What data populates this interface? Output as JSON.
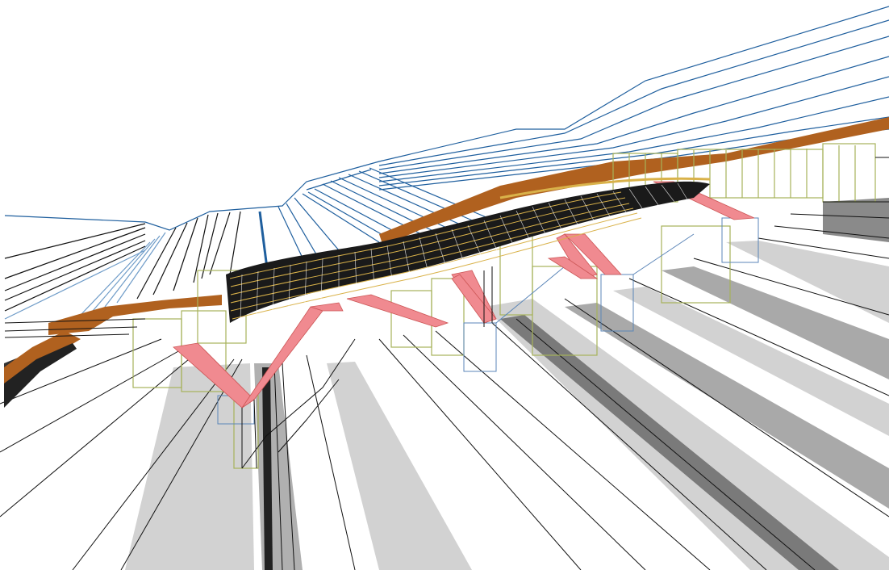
{
  "view": {
    "type": "architectural-wireframe-3d-perspective"
  },
  "palette": {
    "background": "#ffffff",
    "ink": "#111111",
    "blue_line": "#1f5f9e",
    "light_blue_line": "#6f9cc8",
    "copper_band": "#b0611f",
    "salmon_brace": "#f08a90",
    "olive_frame": "#a6b25a",
    "roof_gold": "#d9b24a",
    "roof_dark": "#1a1a1a",
    "ground_light": "#d2d2d2",
    "ground_mid": "#a9a9a9",
    "ground_dark": "#6e6e6e"
  },
  "legend": []
}
